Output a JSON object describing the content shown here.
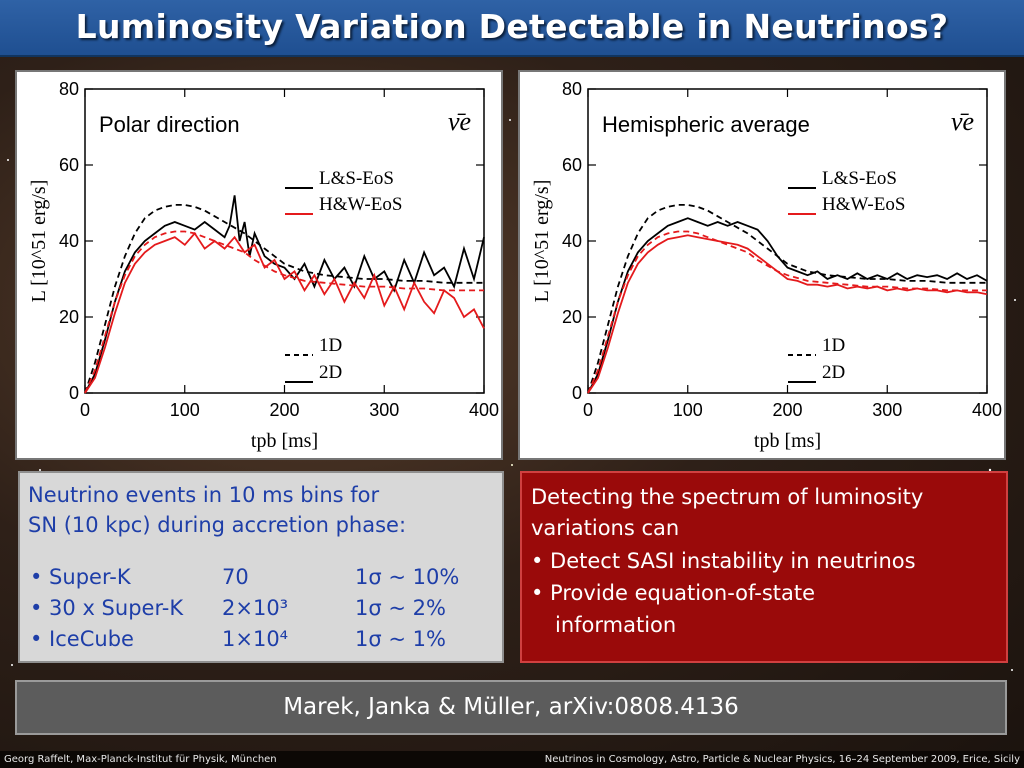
{
  "slide": {
    "title": "Luminosity Variation Detectable in Neutrinos?"
  },
  "chart_data": [
    {
      "type": "line",
      "panel_label": "Polar direction",
      "flavor_label": "ν̄e",
      "xlabel": "tpb [ms]",
      "ylabel": "L [10^51 erg/s]",
      "xlim": [
        0,
        400
      ],
      "ylim": [
        0,
        80
      ],
      "xticks": [
        "0",
        "100",
        "200",
        "300",
        "400"
      ],
      "yticks": [
        "0",
        "20",
        "40",
        "60",
        "80"
      ],
      "legend_eos": [
        "L&S-EoS",
        "H&W-EoS"
      ],
      "legend_dim": [
        "1D",
        "2D"
      ],
      "series": [
        {
          "name": "L&S-EoS 1D",
          "color": "#000000",
          "dash": true,
          "x": [
            0,
            10,
            20,
            30,
            40,
            50,
            60,
            70,
            80,
            90,
            100,
            110,
            120,
            130,
            140,
            150,
            160,
            170,
            180,
            190,
            200,
            220,
            240,
            260,
            280,
            300,
            320,
            340,
            360,
            380,
            400
          ],
          "y": [
            0,
            8,
            18,
            28,
            36,
            42,
            46,
            48,
            49,
            49.5,
            49.5,
            49,
            48,
            46.5,
            45,
            43.5,
            42,
            40,
            38,
            36,
            34,
            32,
            31,
            30.5,
            30,
            30,
            29.5,
            29.5,
            29,
            29,
            29
          ]
        },
        {
          "name": "L&S-EoS 2D",
          "color": "#000000",
          "dash": false,
          "x": [
            0,
            10,
            20,
            30,
            40,
            50,
            60,
            70,
            80,
            90,
            100,
            110,
            120,
            130,
            140,
            145,
            150,
            155,
            160,
            165,
            170,
            180,
            190,
            200,
            210,
            220,
            230,
            240,
            250,
            260,
            270,
            280,
            290,
            300,
            310,
            320,
            330,
            340,
            350,
            360,
            370,
            380,
            390,
            400
          ],
          "y": [
            0,
            5,
            14,
            24,
            32,
            37,
            40,
            42,
            44,
            45,
            44,
            43,
            45,
            43,
            41,
            44,
            52,
            40,
            45,
            36,
            42,
            36,
            34,
            33,
            30,
            34,
            28,
            35,
            30,
            33,
            28,
            36,
            30,
            32,
            27,
            35,
            29,
            37,
            31,
            33,
            28,
            38,
            30,
            41
          ]
        },
        {
          "name": "H&W-EoS 1D",
          "color": "#e41a1c",
          "dash": true,
          "x": [
            0,
            10,
            20,
            30,
            40,
            50,
            60,
            70,
            80,
            90,
            100,
            110,
            120,
            130,
            140,
            150,
            160,
            170,
            180,
            190,
            200,
            220,
            240,
            260,
            280,
            300,
            320,
            340,
            360,
            380,
            400
          ],
          "y": [
            0,
            6,
            15,
            24,
            31,
            36,
            39,
            41,
            42,
            42.5,
            42.5,
            42,
            41,
            40,
            39,
            38,
            37,
            35,
            33.5,
            32,
            31,
            29.5,
            29,
            28.5,
            28,
            28,
            27.5,
            27.5,
            27,
            27,
            27
          ]
        },
        {
          "name": "H&W-EoS 2D",
          "color": "#e41a1c",
          "dash": false,
          "x": [
            0,
            10,
            20,
            30,
            40,
            50,
            60,
            70,
            80,
            90,
            100,
            110,
            120,
            130,
            140,
            150,
            160,
            170,
            180,
            190,
            200,
            210,
            220,
            230,
            240,
            250,
            260,
            270,
            280,
            290,
            300,
            310,
            320,
            330,
            340,
            350,
            360,
            370,
            380,
            390,
            400
          ],
          "y": [
            0,
            4,
            12,
            21,
            29,
            34,
            37,
            39,
            40,
            41,
            39,
            42,
            38,
            40,
            38,
            41,
            37,
            39,
            33,
            35,
            30,
            32,
            27,
            31,
            26,
            30,
            24,
            29,
            25,
            31,
            23,
            28,
            22,
            29,
            24,
            21,
            27,
            25,
            20,
            22,
            17
          ]
        }
      ]
    },
    {
      "type": "line",
      "panel_label": "Hemispheric average",
      "flavor_label": "ν̄e",
      "xlabel": "tpb [ms]",
      "ylabel": "L [10^51 erg/s]",
      "xlim": [
        0,
        400
      ],
      "ylim": [
        0,
        80
      ],
      "xticks": [
        "0",
        "100",
        "200",
        "300",
        "400"
      ],
      "yticks": [
        "0",
        "20",
        "40",
        "60",
        "80"
      ],
      "legend_eos": [
        "L&S-EoS",
        "H&W-EoS"
      ],
      "legend_dim": [
        "1D",
        "2D"
      ],
      "series": [
        {
          "name": "L&S-EoS 1D",
          "color": "#000000",
          "dash": true,
          "x": [
            0,
            10,
            20,
            30,
            40,
            50,
            60,
            70,
            80,
            90,
            100,
            110,
            120,
            130,
            140,
            150,
            160,
            170,
            180,
            190,
            200,
            220,
            240,
            260,
            280,
            300,
            320,
            340,
            360,
            380,
            400
          ],
          "y": [
            0,
            8,
            18,
            28,
            36,
            42,
            46,
            48,
            49,
            49.5,
            49.5,
            49,
            48,
            46.5,
            45,
            43.5,
            42,
            40,
            38,
            36,
            34,
            32,
            31,
            30.5,
            30,
            30,
            29.5,
            29.5,
            29,
            29,
            29
          ]
        },
        {
          "name": "L&S-EoS 2D",
          "color": "#000000",
          "dash": false,
          "x": [
            0,
            10,
            20,
            30,
            40,
            50,
            60,
            70,
            80,
            90,
            100,
            110,
            120,
            130,
            140,
            150,
            160,
            170,
            180,
            190,
            200,
            210,
            220,
            230,
            240,
            250,
            260,
            270,
            280,
            290,
            300,
            310,
            320,
            330,
            340,
            350,
            360,
            370,
            380,
            390,
            400
          ],
          "y": [
            0,
            5,
            14,
            24,
            32,
            37,
            40,
            42,
            44,
            45,
            46,
            45,
            44,
            45,
            44,
            45,
            44,
            43,
            40,
            36,
            33,
            32,
            31,
            32,
            30,
            31,
            30,
            31.5,
            30,
            31,
            30,
            31.5,
            30,
            31,
            30.5,
            31,
            30,
            31.5,
            30,
            31,
            29.5
          ]
        },
        {
          "name": "H&W-EoS 1D",
          "color": "#e41a1c",
          "dash": true,
          "x": [
            0,
            10,
            20,
            30,
            40,
            50,
            60,
            70,
            80,
            90,
            100,
            110,
            120,
            130,
            140,
            150,
            160,
            170,
            180,
            190,
            200,
            220,
            240,
            260,
            280,
            300,
            320,
            340,
            360,
            380,
            400
          ],
          "y": [
            0,
            6,
            15,
            24,
            31,
            36,
            39,
            41,
            42,
            42.5,
            42.5,
            42,
            41,
            40,
            39,
            38,
            37,
            35,
            33.5,
            32,
            31,
            29.5,
            29,
            28.5,
            28,
            28,
            27.5,
            27.5,
            27,
            27,
            27
          ]
        },
        {
          "name": "H&W-EoS 2D",
          "color": "#e41a1c",
          "dash": false,
          "x": [
            0,
            10,
            20,
            30,
            40,
            50,
            60,
            70,
            80,
            90,
            100,
            110,
            120,
            130,
            140,
            150,
            160,
            170,
            180,
            190,
            200,
            210,
            220,
            230,
            240,
            250,
            260,
            270,
            280,
            290,
            300,
            310,
            320,
            330,
            340,
            350,
            360,
            370,
            380,
            390,
            400
          ],
          "y": [
            0,
            4,
            12,
            21,
            29,
            34,
            37,
            39,
            40.5,
            41,
            41.5,
            41,
            40.5,
            40,
            39.5,
            39,
            38,
            36,
            34,
            32,
            30,
            29.5,
            28.5,
            28.5,
            28,
            28.5,
            27.5,
            28,
            27.5,
            28,
            27,
            27.5,
            27,
            27.5,
            27,
            27,
            26.5,
            27,
            26.5,
            26.5,
            26
          ]
        }
      ]
    }
  ],
  "info": {
    "heading_line1": "Neutrino events in 10 ms bins for",
    "heading_line2": "SN (10 kpc) during accretion phase:",
    "rows": [
      {
        "name": "• Super-K",
        "events": "70",
        "significance": "1σ ~ 10%"
      },
      {
        "name": "• 30 x Super-K",
        "events": "2×10³",
        "significance": "1σ ~   2%"
      },
      {
        "name": "• IceCube",
        "events": "1×10⁴",
        "significance": "1σ ~   1%"
      }
    ]
  },
  "conclusion": {
    "line1": "Detecting the spectrum of luminosity",
    "line2": "variations can",
    "bullet1": "• Detect SASI instability in neutrinos",
    "bullet2a": "• Provide equation-of-state",
    "bullet2b": "information"
  },
  "reference": {
    "text": "Marek, Janka & Müller, arXiv:0808.4136"
  },
  "footer": {
    "left": "Georg Raffelt, Max-Planck-Institut für Physik, München",
    "right": "Neutrinos in Cosmology, Astro, Particle & Nuclear Physics, 16–24 September 2009, Erice, Sicily"
  }
}
